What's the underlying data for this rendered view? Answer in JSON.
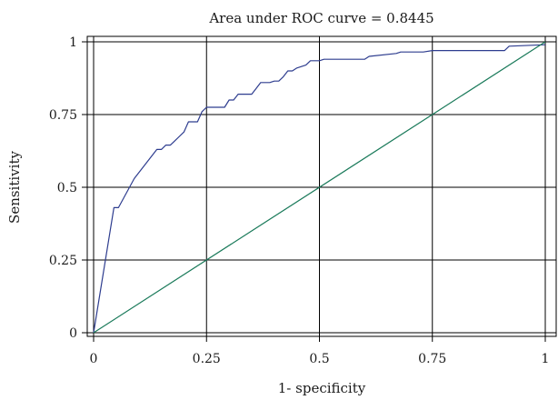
{
  "chart_data": {
    "type": "line",
    "title": "Area under ROC curve = 0.8445",
    "xlabel": "1- specificity",
    "ylabel": "Sensitivity",
    "xlim": [
      0,
      1
    ],
    "ylim": [
      0,
      1
    ],
    "x_ticks": [
      0,
      0.25,
      0.5,
      0.75,
      1
    ],
    "y_ticks": [
      0,
      0.25,
      0.5,
      0.75,
      1
    ],
    "x_tick_labels": [
      "0",
      "0.25",
      "0.5",
      "0.75",
      "1"
    ],
    "y_tick_labels": [
      "0",
      "0.25",
      "0.5",
      "0.75",
      "1"
    ],
    "grid": true,
    "legend": "none",
    "series": [
      {
        "color": "#2e3d8f",
        "x": [
          0,
          0.045,
          0.055,
          0.09,
          0.14,
          0.15,
          0.16,
          0.17,
          0.18,
          0.19,
          0.2,
          0.21,
          0.22,
          0.23,
          0.24,
          0.25,
          0.26,
          0.29,
          0.3,
          0.31,
          0.32,
          0.33,
          0.35,
          0.36,
          0.37,
          0.38,
          0.39,
          0.4,
          0.41,
          0.42,
          0.43,
          0.44,
          0.45,
          0.46,
          0.47,
          0.48,
          0.49,
          0.5,
          0.51,
          0.53,
          0.55,
          0.6,
          0.61,
          0.67,
          0.68,
          0.73,
          0.75,
          0.91,
          0.92,
          1.0
        ],
        "y": [
          0,
          0.43,
          0.43,
          0.53,
          0.63,
          0.63,
          0.645,
          0.645,
          0.66,
          0.675,
          0.69,
          0.725,
          0.725,
          0.725,
          0.76,
          0.775,
          0.775,
          0.775,
          0.8,
          0.8,
          0.82,
          0.82,
          0.82,
          0.84,
          0.86,
          0.86,
          0.86,
          0.865,
          0.865,
          0.88,
          0.9,
          0.9,
          0.91,
          0.915,
          0.92,
          0.935,
          0.935,
          0.935,
          0.94,
          0.94,
          0.94,
          0.94,
          0.95,
          0.96,
          0.965,
          0.965,
          0.97,
          0.97,
          0.985,
          0.99
        ]
      },
      {
        "color": "#1a7a5a",
        "x": [
          0,
          1
        ],
        "y": [
          0,
          1
        ]
      }
    ]
  }
}
